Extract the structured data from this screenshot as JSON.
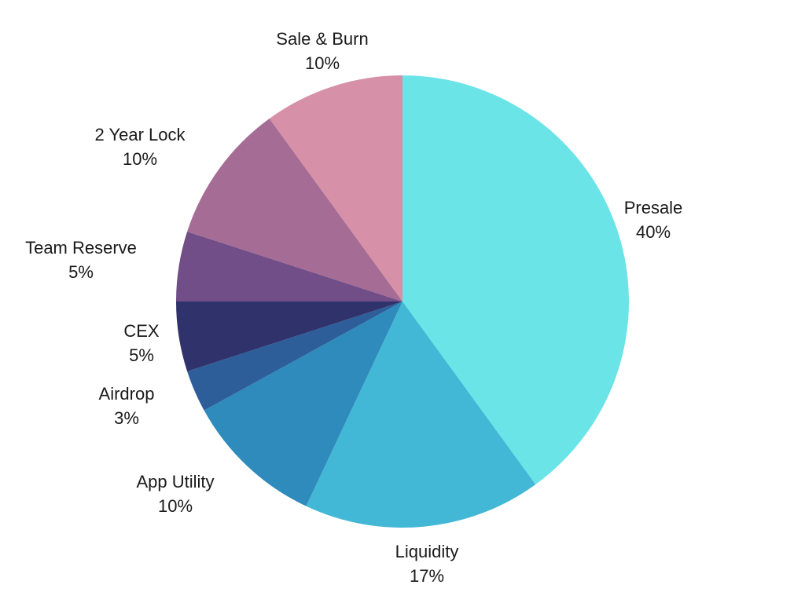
{
  "chart_data": {
    "type": "pie",
    "title": "",
    "start": "12 o'clock",
    "direction": "clockwise",
    "slices": [
      {
        "label": "Presale",
        "value": 40,
        "value_label": "40%",
        "color": "#6be4e8"
      },
      {
        "label": "Liquidity",
        "value": 17,
        "value_label": "17%",
        "color": "#43b8d6"
      },
      {
        "label": "App Utility",
        "value": 10,
        "value_label": "10%",
        "color": "#2e8bbb"
      },
      {
        "label": "Airdrop",
        "value": 3,
        "value_label": "3%",
        "color": "#2d5e99"
      },
      {
        "label": "CEX",
        "value": 5,
        "value_label": "5%",
        "color": "#30336b"
      },
      {
        "label": "Team Reserve",
        "value": 5,
        "value_label": "5%",
        "color": "#714e88"
      },
      {
        "label": "2 Year Lock",
        "value": 10,
        "value_label": "10%",
        "color": "#a56c95"
      },
      {
        "label": "Sale & Burn",
        "value": 10,
        "value_label": "10%",
        "color": "#d690a8"
      }
    ]
  }
}
